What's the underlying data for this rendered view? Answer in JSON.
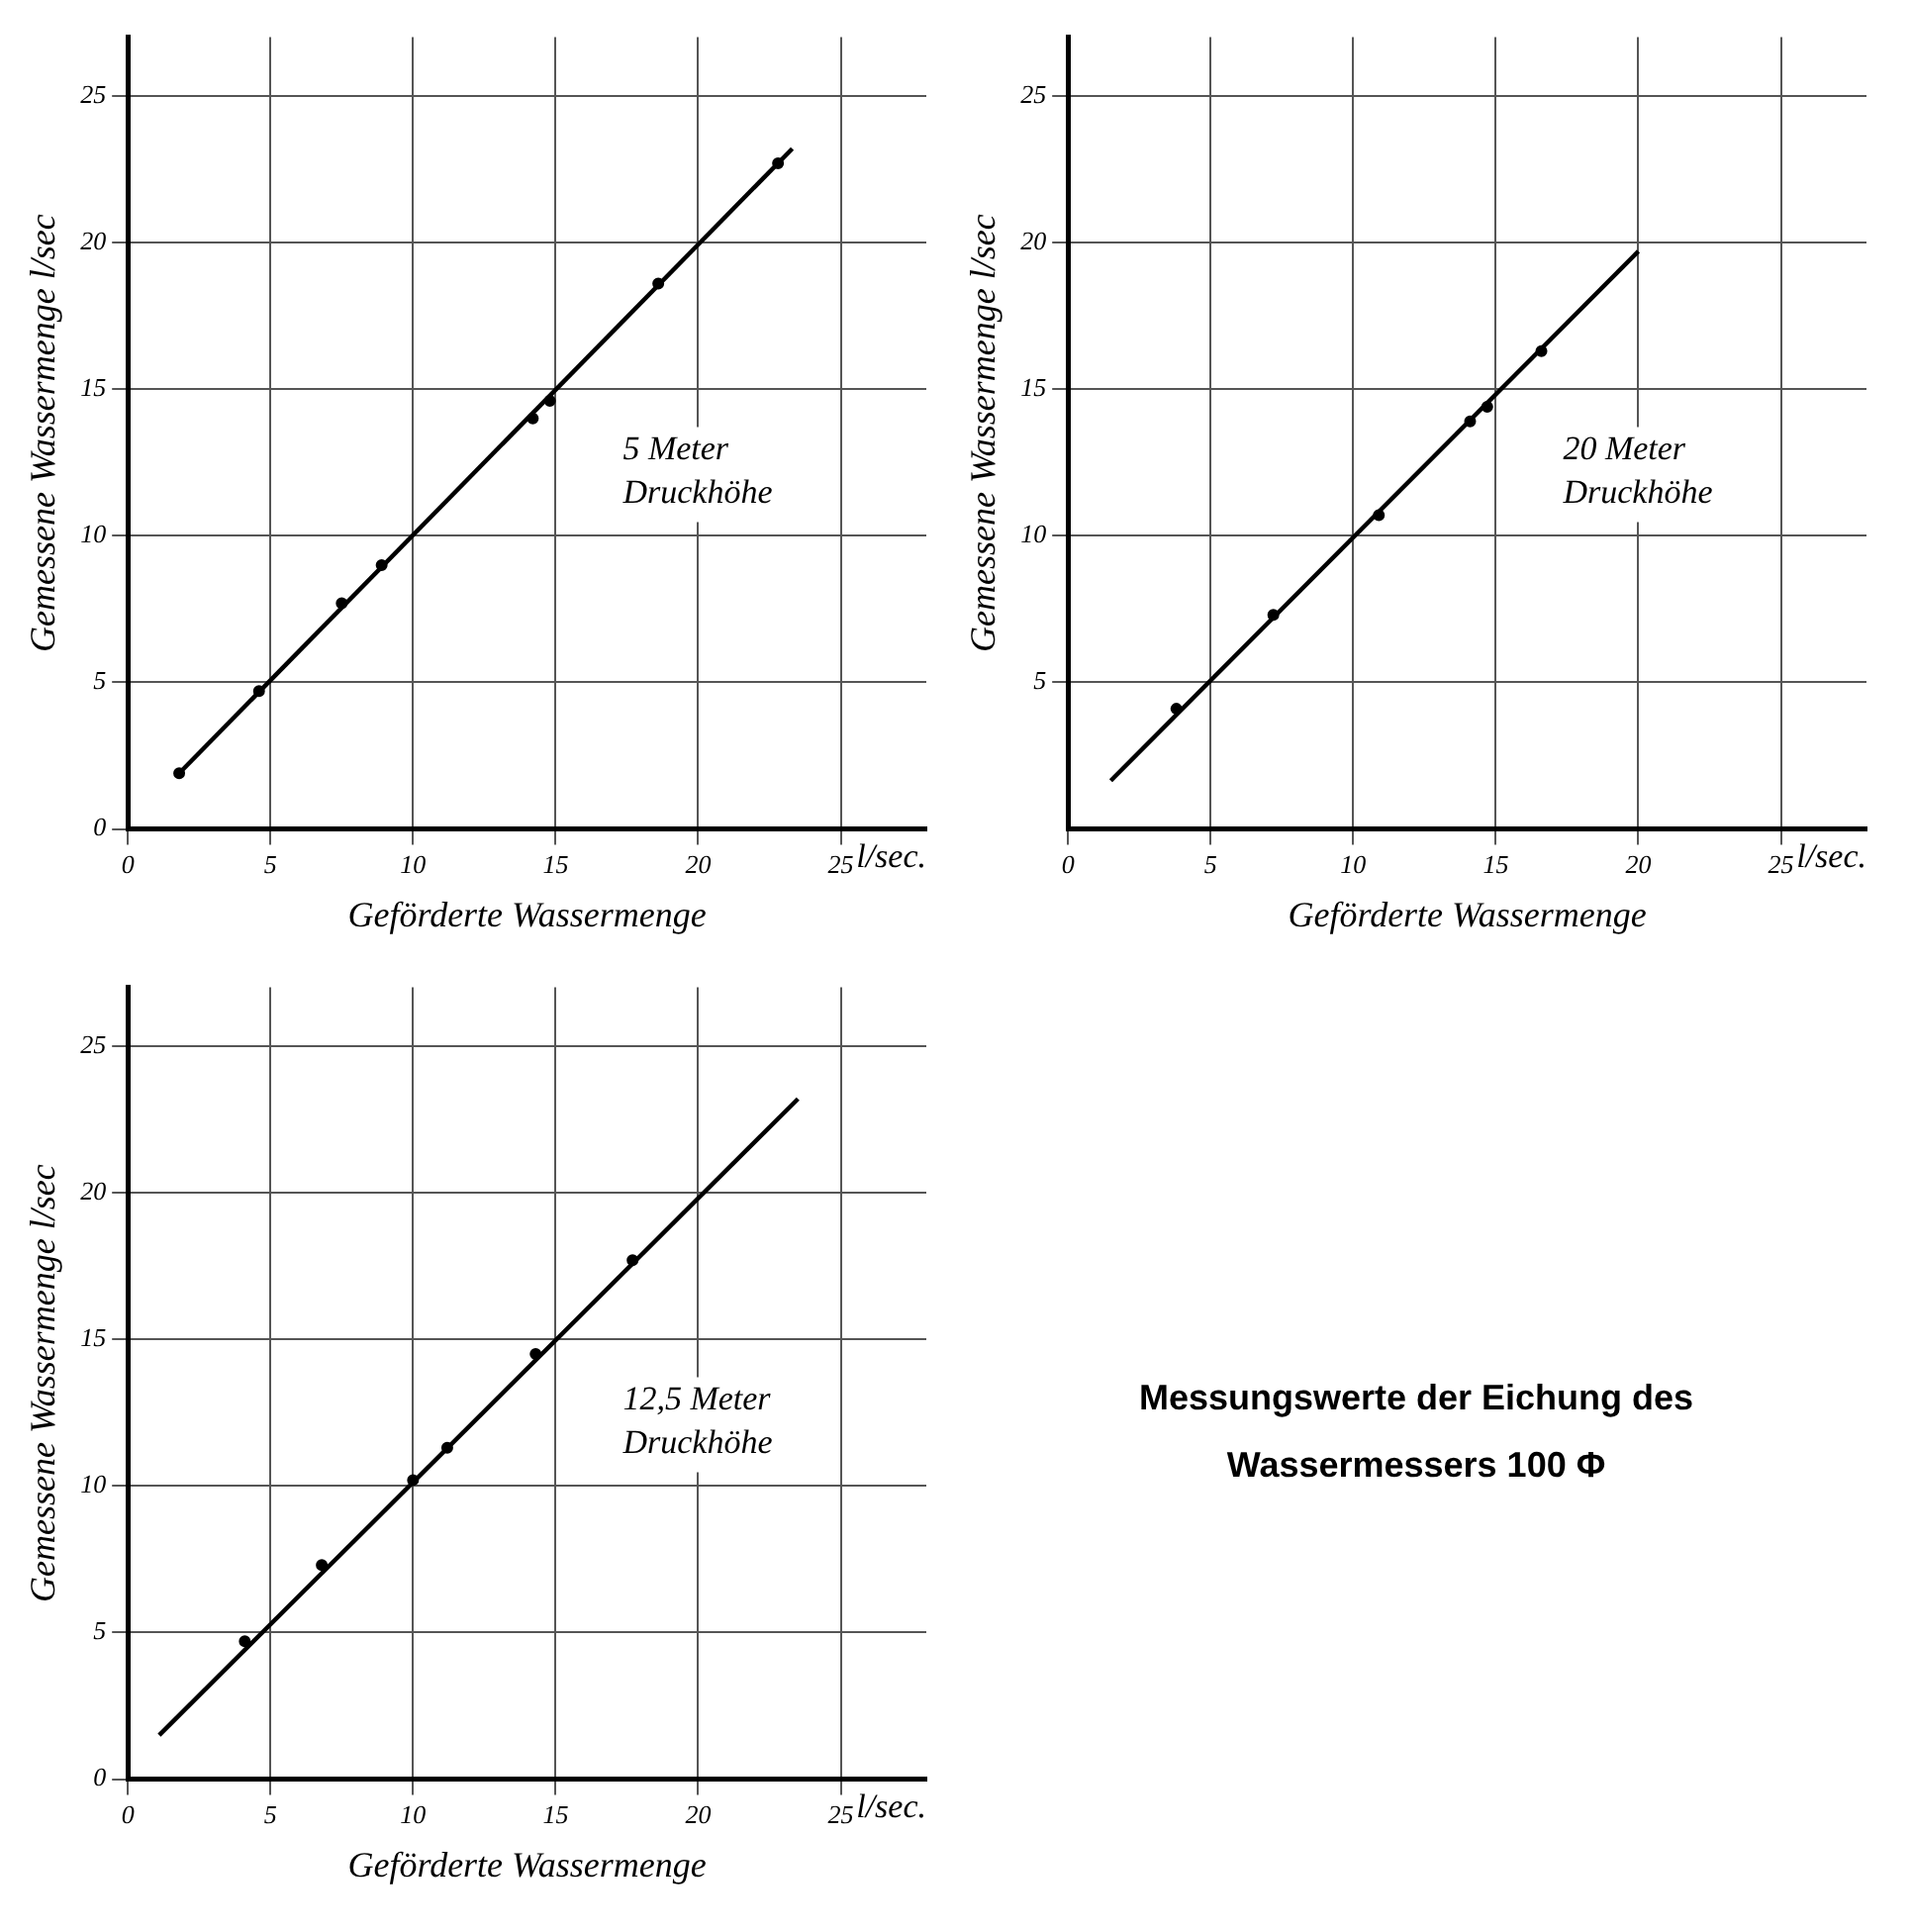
{
  "chart_data": [
    {
      "type": "scatter",
      "xlabel": "Geförderte Wassermenge",
      "ylabel": "Gemessene Wassermenge l/sec",
      "xlim": [
        0,
        28
      ],
      "ylim": [
        0,
        27
      ],
      "xticks": [
        0,
        5,
        10,
        15,
        20,
        25
      ],
      "yticks": [
        0,
        5,
        10,
        15,
        20,
        25
      ],
      "grid": true,
      "legend": false,
      "marker": "circle",
      "annotations": [
        "5 Meter Druckhöhe",
        "l/sec."
      ],
      "series": [
        {
          "type": "scatter",
          "color": "#000000",
          "x": [
            1.8,
            4.6,
            7.5,
            8.9,
            14.2,
            14.8,
            18.6,
            22.8
          ],
          "values": [
            1.9,
            4.7,
            7.7,
            9.0,
            14.0,
            14.6,
            18.6,
            22.7
          ]
        },
        {
          "type": "line",
          "color": "#000000",
          "marker": "none",
          "x": [
            1.8,
            23.3
          ],
          "values": [
            1.9,
            23.2
          ]
        }
      ]
    },
    {
      "type": "scatter",
      "xlabel": "Geförderte Wassermenge",
      "ylabel": "Gemessene Wassermenge l/sec",
      "xlim": [
        0,
        28
      ],
      "ylim": [
        0,
        27
      ],
      "xticks": [
        0,
        5,
        10,
        15,
        20,
        25
      ],
      "yticks": [
        5,
        10,
        15,
        20,
        25
      ],
      "grid": true,
      "legend": false,
      "marker": "circle",
      "annotations": [
        "20 Meter Druckhöhe",
        "l/sec."
      ],
      "series": [
        {
          "type": "scatter",
          "color": "#000000",
          "x": [
            3.8,
            7.2,
            10.9,
            14.1,
            14.7,
            16.6
          ],
          "values": [
            4.1,
            7.3,
            10.7,
            13.9,
            14.4,
            16.3
          ]
        },
        {
          "type": "line",
          "color": "#000000",
          "marker": "none",
          "x": [
            1.5,
            20.0
          ],
          "values": [
            1.65,
            19.7
          ]
        }
      ]
    },
    {
      "type": "scatter",
      "xlabel": "Geförderte Wassermenge",
      "ylabel": "Gemessene Wassermenge l/sec",
      "xlim": [
        0,
        28
      ],
      "ylim": [
        0,
        27
      ],
      "xticks": [
        0,
        5,
        10,
        15,
        20,
        25
      ],
      "yticks": [
        0,
        5,
        10,
        15,
        20,
        25
      ],
      "grid": true,
      "legend": false,
      "marker": "circle",
      "annotations": [
        "12,5 Meter Druckhöhe",
        "l/sec."
      ],
      "series": [
        {
          "type": "scatter",
          "color": "#000000",
          "x": [
            4.1,
            6.8,
            10.0,
            11.2,
            14.3,
            17.7
          ],
          "values": [
            4.7,
            7.3,
            10.2,
            11.3,
            14.5,
            17.7
          ]
        },
        {
          "type": "line",
          "color": "#000000",
          "marker": "none",
          "x": [
            1.1,
            23.5
          ],
          "values": [
            1.5,
            23.2
          ]
        }
      ]
    },
    {
      "type": "other",
      "title": "Messungswerte der Eichung des Wassermessers 100 Φ"
    }
  ]
}
